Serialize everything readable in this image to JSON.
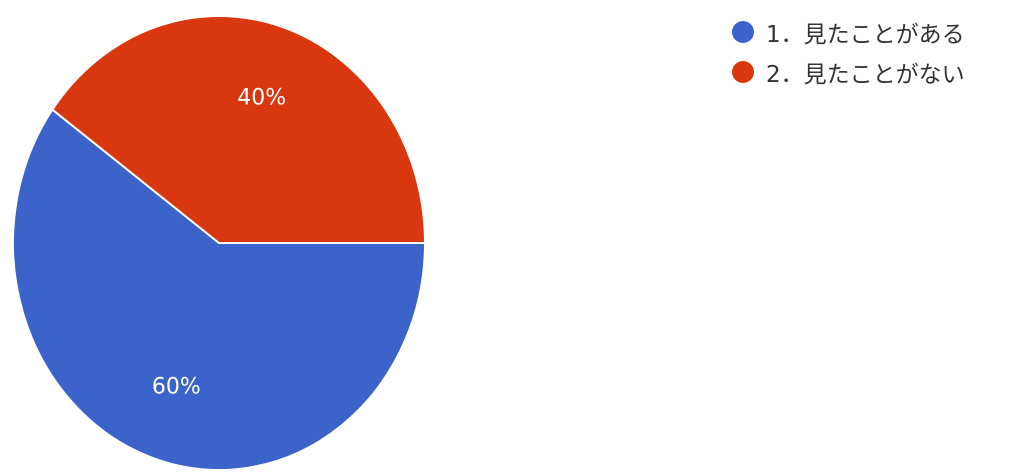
{
  "chart_data": {
    "type": "pie",
    "slices": [
      {
        "label": "1．見たことがある",
        "value": 60,
        "display": "60%",
        "color": "#3c63c9"
      },
      {
        "label": "2．見たことがない",
        "value": 40,
        "display": "40%",
        "color": "#d8370f"
      }
    ],
    "legend_position": "top-right"
  }
}
